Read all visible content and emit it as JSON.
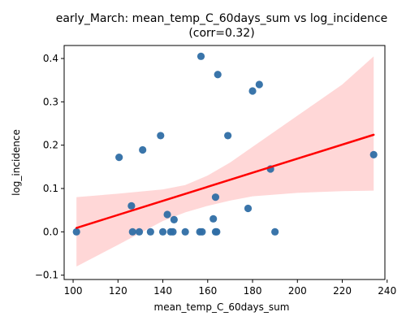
{
  "chart_data": {
    "type": "scatter",
    "title": "early_March: mean_temp_C_60days_sum vs log_incidence",
    "subtitle": "(corr=0.32)",
    "xlabel": "mean_temp_C_60days_sum",
    "ylabel": "log_incidence",
    "xlim": [
      96,
      239
    ],
    "ylim": [
      -0.11,
      0.43
    ],
    "xticks": [
      100,
      120,
      140,
      160,
      180,
      200,
      220,
      240
    ],
    "yticks": [
      -0.1,
      0.0,
      0.1,
      0.2,
      0.3,
      0.4
    ],
    "xtick_labels": [
      "100",
      "120",
      "140",
      "160",
      "180",
      "200",
      "220",
      "240"
    ],
    "ytick_labels": [
      "−0.1",
      "0.0",
      "0.1",
      "0.2",
      "0.3",
      "0.4"
    ],
    "grid": false,
    "legend": "none",
    "points": [
      {
        "x": 101.5,
        "y": 0.0
      },
      {
        "x": 120.5,
        "y": 0.172
      },
      {
        "x": 126.0,
        "y": 0.06
      },
      {
        "x": 126.5,
        "y": 0.0
      },
      {
        "x": 129.5,
        "y": 0.0
      },
      {
        "x": 131.0,
        "y": 0.189
      },
      {
        "x": 134.5,
        "y": 0.0
      },
      {
        "x": 139.0,
        "y": 0.222
      },
      {
        "x": 140.0,
        "y": 0.0
      },
      {
        "x": 142.0,
        "y": 0.04
      },
      {
        "x": 143.5,
        "y": 0.0
      },
      {
        "x": 144.5,
        "y": 0.0
      },
      {
        "x": 145.0,
        "y": 0.028
      },
      {
        "x": 150.0,
        "y": 0.0
      },
      {
        "x": 156.5,
        "y": 0.0
      },
      {
        "x": 157.0,
        "y": 0.405
      },
      {
        "x": 157.5,
        "y": 0.0
      },
      {
        "x": 162.5,
        "y": 0.03
      },
      {
        "x": 163.5,
        "y": 0.08
      },
      {
        "x": 163.5,
        "y": 0.0
      },
      {
        "x": 164.0,
        "y": 0.0
      },
      {
        "x": 164.5,
        "y": 0.363
      },
      {
        "x": 169.0,
        "y": 0.222
      },
      {
        "x": 178.0,
        "y": 0.054
      },
      {
        "x": 180.0,
        "y": 0.325
      },
      {
        "x": 183.0,
        "y": 0.34
      },
      {
        "x": 188.0,
        "y": 0.145
      },
      {
        "x": 190.0,
        "y": 0.0
      },
      {
        "x": 234.0,
        "y": 0.178
      }
    ],
    "regression": {
      "x": [
        101.5,
        234.0
      ],
      "y": [
        0.009,
        0.224
      ],
      "ci_upper": [
        {
          "x": 101.5,
          "y": 0.08
        },
        {
          "x": 120,
          "y": 0.088
        },
        {
          "x": 140,
          "y": 0.098
        },
        {
          "x": 150,
          "y": 0.108
        },
        {
          "x": 160,
          "y": 0.13
        },
        {
          "x": 170,
          "y": 0.16
        },
        {
          "x": 180,
          "y": 0.196
        },
        {
          "x": 200,
          "y": 0.268
        },
        {
          "x": 220,
          "y": 0.34
        },
        {
          "x": 234.0,
          "y": 0.405
        }
      ],
      "ci_lower": [
        {
          "x": 101.5,
          "y": -0.08
        },
        {
          "x": 120,
          "y": -0.03
        },
        {
          "x": 140,
          "y": 0.025
        },
        {
          "x": 150,
          "y": 0.045
        },
        {
          "x": 160,
          "y": 0.06
        },
        {
          "x": 170,
          "y": 0.072
        },
        {
          "x": 180,
          "y": 0.082
        },
        {
          "x": 200,
          "y": 0.09
        },
        {
          "x": 220,
          "y": 0.094
        },
        {
          "x": 234.0,
          "y": 0.095
        }
      ]
    },
    "colors": {
      "points": "#2f6ea5",
      "line": "#ff0000",
      "band": "#ffd0d0",
      "axis": "#000000"
    }
  }
}
